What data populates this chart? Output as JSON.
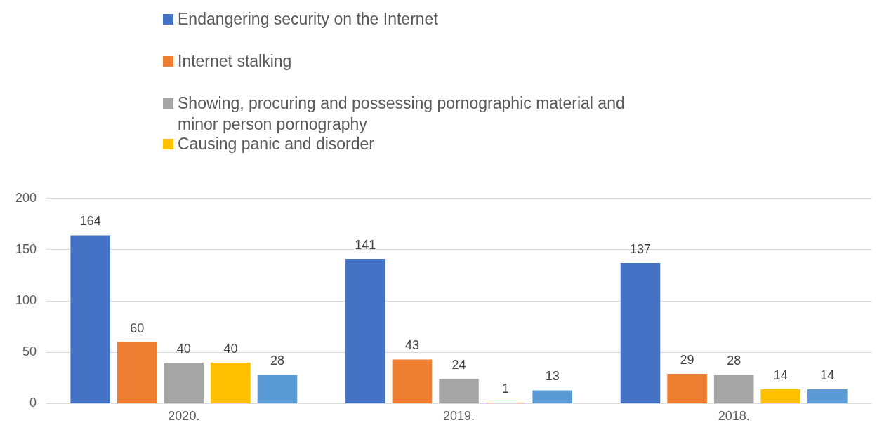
{
  "chart_data": {
    "type": "bar",
    "categories": [
      "2020.",
      "2019.",
      "2018."
    ],
    "series": [
      {
        "name": "Endangering security on the Internet",
        "color": "#4472c4",
        "values": [
          164,
          141,
          137
        ]
      },
      {
        "name": "Internet stalking",
        "color": "#ed7d31",
        "values": [
          60,
          43,
          29
        ]
      },
      {
        "name": "Showing, procuring and possessing pornographic material and minor person pornography",
        "color": "#a5a5a5",
        "values": [
          40,
          24,
          28
        ]
      },
      {
        "name": "Causing panic and disorder",
        "color": "#ffc000",
        "values": [
          40,
          1,
          14
        ]
      },
      {
        "color": "#5b9bd5",
        "values": [
          28,
          13,
          14
        ]
      }
    ],
    "ylim": [
      0,
      200
    ],
    "yticks": [
      0,
      50,
      100,
      150,
      200
    ],
    "grid": "y",
    "legend": "top",
    "data_labels": true
  }
}
